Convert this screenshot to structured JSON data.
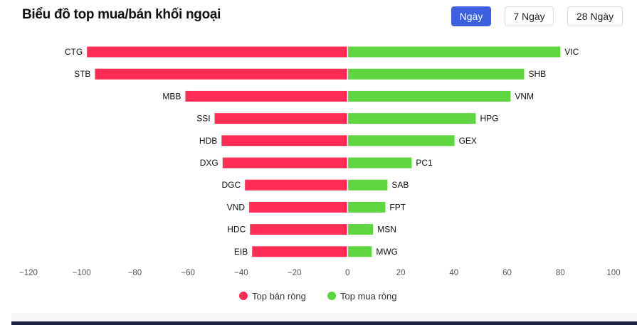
{
  "header": {
    "title": "Biểu đồ top mua/bán khối ngoại"
  },
  "period_buttons": [
    {
      "label": "Ngày",
      "active": true
    },
    {
      "label": "7 Ngày",
      "active": false
    },
    {
      "label": "28 Ngày",
      "active": false
    }
  ],
  "chart_data": {
    "type": "bar",
    "orientation": "horizontal-diverging",
    "xlim": [
      -120,
      100
    ],
    "x_ticks": [
      -120,
      -100,
      -80,
      -60,
      -40,
      -20,
      0,
      20,
      40,
      60,
      80,
      100
    ],
    "grid": false,
    "legend_position": "bottom",
    "series": [
      {
        "name": "Top bán ròng",
        "color": "#ff2d55",
        "categories": [
          "CTG",
          "STB",
          "MBB",
          "SSI",
          "HDB",
          "DXG",
          "DGC",
          "VND",
          "HDC",
          "EIB"
        ],
        "values": [
          -98,
          -95,
          -61,
          -50,
          -47.4,
          -47,
          -38.6,
          -37,
          -36.7,
          -35.9
        ]
      },
      {
        "name": "Top mua ròng",
        "color": "#5ed63f",
        "categories": [
          "VIC",
          "SHB",
          "VNM",
          "HPG",
          "GEX",
          "PC1",
          "SAB",
          "FPT",
          "MSN",
          "MWG"
        ],
        "values": [
          80,
          66.4,
          61.3,
          48.2,
          40.2,
          24.1,
          15,
          14.2,
          9.6,
          9.1
        ]
      }
    ]
  }
}
